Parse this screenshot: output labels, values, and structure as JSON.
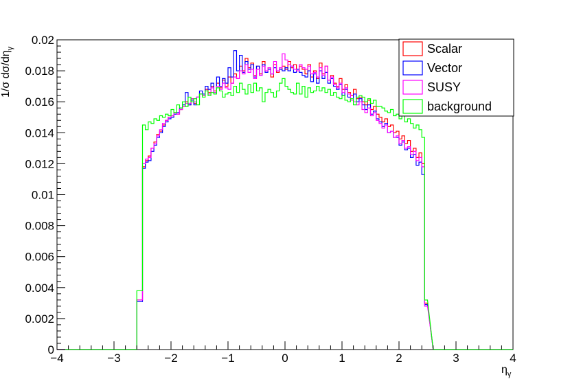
{
  "chart_data": {
    "type": "line",
    "title": "",
    "xlabel": "η",
    "xlabel_sub": "γ",
    "ylabel": "1/σ dσ/dη",
    "ylabel_sub": "γ",
    "xlim": [
      -4,
      4
    ],
    "ylim": [
      0,
      0.02
    ],
    "x_ticks": [
      -4,
      -3,
      -2,
      -1,
      0,
      1,
      2,
      3,
      4
    ],
    "x_tick_labels": [
      "−4",
      "−3",
      "−2",
      "−1",
      "0",
      "1",
      "2",
      "3",
      "4"
    ],
    "y_ticks": [
      0,
      0.002,
      0.004,
      0.006,
      0.008,
      0.01,
      0.012,
      0.014,
      0.016,
      0.018,
      0.02
    ],
    "y_tick_labels": [
      "0",
      "0.002",
      "0.004",
      "0.006",
      "0.008",
      "0.01",
      "0.012",
      "0.014",
      "0.016",
      "0.018",
      "0.02"
    ],
    "grid": false,
    "legend_position": "top-right",
    "bin_edges": [
      -2.6,
      -2.5,
      -2.45,
      -2.4,
      -2.35,
      -2.3,
      -2.25,
      -2.2,
      -2.15,
      -2.1,
      -2.05,
      -2.0,
      -1.95,
      -1.9,
      -1.85,
      -1.8,
      -1.75,
      -1.7,
      -1.65,
      -1.6,
      -1.55,
      -1.5,
      -1.45,
      -1.4,
      -1.35,
      -1.3,
      -1.25,
      -1.2,
      -1.15,
      -1.1,
      -1.05,
      -1.0,
      -0.95,
      -0.9,
      -0.85,
      -0.8,
      -0.75,
      -0.7,
      -0.65,
      -0.6,
      -0.55,
      -0.5,
      -0.45,
      -0.4,
      -0.35,
      -0.3,
      -0.25,
      -0.2,
      -0.15,
      -0.1,
      -0.05,
      0.0,
      0.05,
      0.1,
      0.15,
      0.2,
      0.25,
      0.3,
      0.35,
      0.4,
      0.45,
      0.5,
      0.55,
      0.6,
      0.65,
      0.7,
      0.75,
      0.8,
      0.85,
      0.9,
      0.95,
      1.0,
      1.05,
      1.1,
      1.15,
      1.2,
      1.25,
      1.3,
      1.35,
      1.4,
      1.45,
      1.5,
      1.55,
      1.6,
      1.65,
      1.7,
      1.75,
      1.8,
      1.85,
      1.9,
      1.95,
      2.0,
      2.05,
      2.1,
      2.15,
      2.2,
      2.25,
      2.3,
      2.35,
      2.4,
      2.45,
      2.5,
      2.6
    ],
    "series": [
      {
        "name": "Scalar",
        "color": "#ff0000",
        "values": [
          0.0032,
          0.0118,
          0.0122,
          0.0125,
          0.013,
          0.0134,
          0.0139,
          0.0141,
          0.0145,
          0.0148,
          0.015,
          0.0151,
          0.0153,
          0.0152,
          0.0155,
          0.0157,
          0.016,
          0.0158,
          0.0162,
          0.0159,
          0.0163,
          0.0165,
          0.0164,
          0.0168,
          0.0166,
          0.017,
          0.0167,
          0.0172,
          0.0169,
          0.0174,
          0.017,
          0.0176,
          0.0172,
          0.0178,
          0.0175,
          0.0183,
          0.018,
          0.0188,
          0.0182,
          0.0185,
          0.0177,
          0.0183,
          0.0178,
          0.0186,
          0.018,
          0.0182,
          0.0176,
          0.0184,
          0.0179,
          0.0181,
          0.0183,
          0.0181,
          0.0186,
          0.0182,
          0.0184,
          0.018,
          0.0183,
          0.0181,
          0.0178,
          0.0184,
          0.0176,
          0.018,
          0.0175,
          0.0185,
          0.0178,
          0.0183,
          0.0174,
          0.0177,
          0.0172,
          0.017,
          0.0175,
          0.0168,
          0.0171,
          0.0166,
          0.0164,
          0.0168,
          0.0162,
          0.0163,
          0.016,
          0.0158,
          0.0161,
          0.0155,
          0.0157,
          0.0152,
          0.015,
          0.0147,
          0.0149,
          0.0144,
          0.0145,
          0.014,
          0.0141,
          0.0136,
          0.0138,
          0.0133,
          0.0135,
          0.0128,
          0.013,
          0.0124,
          0.0127,
          0.012,
          0.003
        ]
      },
      {
        "name": "Vector",
        "color": "#0000ff",
        "values": [
          0.0031,
          0.0117,
          0.0121,
          0.0122,
          0.0128,
          0.0132,
          0.0137,
          0.014,
          0.0144,
          0.0147,
          0.0149,
          0.015,
          0.0152,
          0.0153,
          0.0156,
          0.0158,
          0.0166,
          0.0158,
          0.0161,
          0.0158,
          0.0163,
          0.0167,
          0.0165,
          0.017,
          0.0168,
          0.0172,
          0.0166,
          0.0176,
          0.017,
          0.0175,
          0.0172,
          0.0182,
          0.0176,
          0.0193,
          0.018,
          0.019,
          0.0179,
          0.0186,
          0.0181,
          0.0184,
          0.0176,
          0.0183,
          0.0177,
          0.0184,
          0.0179,
          0.0181,
          0.0178,
          0.0182,
          0.018,
          0.0181,
          0.018,
          0.0182,
          0.018,
          0.0183,
          0.0179,
          0.0181,
          0.0179,
          0.0177,
          0.0176,
          0.018,
          0.0173,
          0.0178,
          0.0172,
          0.018,
          0.0175,
          0.0179,
          0.0172,
          0.0175,
          0.017,
          0.0168,
          0.0171,
          0.0164,
          0.0168,
          0.0163,
          0.0161,
          0.0165,
          0.016,
          0.0162,
          0.0158,
          0.0155,
          0.0158,
          0.0152,
          0.0154,
          0.0149,
          0.0147,
          0.0144,
          0.0146,
          0.014,
          0.0141,
          0.0137,
          0.0137,
          0.0132,
          0.0134,
          0.0129,
          0.013,
          0.0124,
          0.0126,
          0.0119,
          0.0121,
          0.0113,
          0.0029
        ]
      },
      {
        "name": "SUSY",
        "color": "#ff00ff",
        "values": [
          0.0032,
          0.012,
          0.0123,
          0.0124,
          0.013,
          0.0133,
          0.0138,
          0.0142,
          0.0146,
          0.0148,
          0.015,
          0.0151,
          0.0153,
          0.0152,
          0.0155,
          0.0157,
          0.0159,
          0.0159,
          0.0162,
          0.016,
          0.0163,
          0.0165,
          0.0164,
          0.0167,
          0.0165,
          0.0169,
          0.0166,
          0.017,
          0.0168,
          0.0172,
          0.0169,
          0.0168,
          0.0172,
          0.0176,
          0.0175,
          0.018,
          0.0178,
          0.0184,
          0.0179,
          0.0181,
          0.0175,
          0.0181,
          0.0177,
          0.0183,
          0.018,
          0.0182,
          0.0178,
          0.0186,
          0.018,
          0.0182,
          0.0191,
          0.0187,
          0.0184,
          0.0183,
          0.0181,
          0.018,
          0.0184,
          0.0182,
          0.0181,
          0.0183,
          0.0178,
          0.0179,
          0.0176,
          0.0182,
          0.0177,
          0.0183,
          0.0174,
          0.0176,
          0.0171,
          0.0169,
          0.0172,
          0.0166,
          0.0169,
          0.0165,
          0.0161,
          0.016,
          0.0158,
          0.016,
          0.0155,
          0.0153,
          0.0156,
          0.0151,
          0.0153,
          0.0148,
          0.0146,
          0.0143,
          0.0145,
          0.014,
          0.0141,
          0.0137,
          0.0138,
          0.0133,
          0.0135,
          0.013,
          0.0131,
          0.0126,
          0.0128,
          0.0122,
          0.0124,
          0.0118,
          0.0028
        ]
      },
      {
        "name": "background",
        "color": "#00ff00",
        "values": [
          0.0038,
          0.0145,
          0.0142,
          0.0147,
          0.0146,
          0.0149,
          0.0148,
          0.0151,
          0.015,
          0.0152,
          0.0151,
          0.0155,
          0.0153,
          0.0158,
          0.0156,
          0.016,
          0.0157,
          0.0163,
          0.016,
          0.0162,
          0.0158,
          0.0165,
          0.0163,
          0.0167,
          0.0164,
          0.0166,
          0.0165,
          0.0169,
          0.0167,
          0.0163,
          0.0165,
          0.0166,
          0.0164,
          0.017,
          0.0166,
          0.0172,
          0.0168,
          0.0165,
          0.0171,
          0.0166,
          0.0172,
          0.0167,
          0.0169,
          0.016,
          0.0166,
          0.0168,
          0.0166,
          0.0163,
          0.0167,
          0.0172,
          0.0175,
          0.017,
          0.0168,
          0.0166,
          0.0165,
          0.0172,
          0.0165,
          0.017,
          0.0163,
          0.0169,
          0.0166,
          0.0167,
          0.017,
          0.0167,
          0.0169,
          0.0166,
          0.0168,
          0.0164,
          0.0166,
          0.0163,
          0.0162,
          0.0164,
          0.0161,
          0.016,
          0.0162,
          0.0158,
          0.0163,
          0.0164,
          0.0163,
          0.016,
          0.0162,
          0.0159,
          0.0161,
          0.0157,
          0.0157,
          0.0156,
          0.0154,
          0.0153,
          0.0155,
          0.0151,
          0.0152,
          0.0149,
          0.0151,
          0.0147,
          0.0149,
          0.0146,
          0.0143,
          0.0145,
          0.0142,
          0.0137,
          0.0032
        ]
      }
    ]
  }
}
